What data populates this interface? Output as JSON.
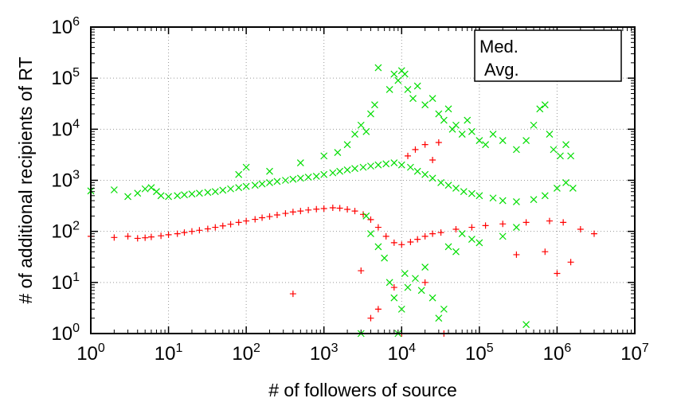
{
  "chart_data": {
    "type": "scatter",
    "xlabel": "# of followers of source",
    "ylabel": "# of additional recipients of RT",
    "x_scale": "log",
    "y_scale": "log",
    "xlim": [
      1,
      10000000
    ],
    "ylim": [
      1,
      1000000
    ],
    "x_ticks": [
      {
        "base": "10",
        "exp": "0"
      },
      {
        "base": "10",
        "exp": "1"
      },
      {
        "base": "10",
        "exp": "2"
      },
      {
        "base": "10",
        "exp": "3"
      },
      {
        "base": "10",
        "exp": "4"
      },
      {
        "base": "10",
        "exp": "5"
      },
      {
        "base": "10",
        "exp": "6"
      },
      {
        "base": "10",
        "exp": "7"
      }
    ],
    "y_ticks": [
      {
        "base": "10",
        "exp": "0"
      },
      {
        "base": "10",
        "exp": "1"
      },
      {
        "base": "10",
        "exp": "2"
      },
      {
        "base": "10",
        "exp": "3"
      },
      {
        "base": "10",
        "exp": "4"
      },
      {
        "base": "10",
        "exp": "5"
      },
      {
        "base": "10",
        "exp": "6"
      }
    ],
    "grid": true,
    "legend_position": "top-right",
    "series": [
      {
        "name": "Med.",
        "marker": "+",
        "color": "#ff0000",
        "points": [
          [
            1,
            80
          ],
          [
            2,
            76
          ],
          [
            3,
            80
          ],
          [
            4,
            73
          ],
          [
            5,
            75
          ],
          [
            6,
            78
          ],
          [
            8,
            82
          ],
          [
            10,
            86
          ],
          [
            13,
            90
          ],
          [
            16,
            95
          ],
          [
            20,
            100
          ],
          [
            25,
            105
          ],
          [
            32,
            112
          ],
          [
            40,
            120
          ],
          [
            50,
            128
          ],
          [
            63,
            138
          ],
          [
            80,
            150
          ],
          [
            100,
            160
          ],
          [
            130,
            172
          ],
          [
            160,
            185
          ],
          [
            200,
            195
          ],
          [
            250,
            210
          ],
          [
            320,
            225
          ],
          [
            400,
            240
          ],
          [
            500,
            250
          ],
          [
            630,
            262
          ],
          [
            800,
            272
          ],
          [
            1000,
            280
          ],
          [
            1300,
            290
          ],
          [
            1600,
            285
          ],
          [
            2000,
            270
          ],
          [
            2500,
            250
          ],
          [
            3200,
            215
          ],
          [
            4000,
            170
          ],
          [
            5000,
            120
          ],
          [
            6300,
            80
          ],
          [
            8000,
            60
          ],
          [
            10000,
            55
          ],
          [
            13000,
            62
          ],
          [
            16000,
            70
          ],
          [
            20000,
            80
          ],
          [
            25000,
            90
          ],
          [
            32000,
            95
          ],
          [
            50000,
            110
          ],
          [
            80000,
            120
          ],
          [
            120000,
            130
          ],
          [
            200000,
            140
          ],
          [
            400000,
            150
          ],
          [
            800000,
            160
          ],
          [
            1200000,
            150
          ],
          [
            2000000,
            110
          ],
          [
            3000000,
            90
          ],
          [
            400,
            6
          ],
          [
            4000,
            2
          ],
          [
            10000,
            1
          ],
          [
            5000,
            3
          ],
          [
            8000,
            8
          ],
          [
            20000,
            10
          ],
          [
            35000,
            1
          ],
          [
            1000000,
            15
          ],
          [
            1500000,
            25
          ],
          [
            700000,
            40
          ],
          [
            300000,
            35
          ],
          [
            3000,
            17
          ],
          [
            15000,
            4000
          ],
          [
            20000,
            5000
          ],
          [
            30000,
            5500
          ],
          [
            12000,
            3000
          ],
          [
            25000,
            2500
          ]
        ]
      },
      {
        "name": "Avg.",
        "marker": "x",
        "color": "#00dd00",
        "points": [
          [
            1,
            620
          ],
          [
            2,
            650
          ],
          [
            3,
            480
          ],
          [
            4,
            560
          ],
          [
            5,
            680
          ],
          [
            6,
            720
          ],
          [
            7,
            600
          ],
          [
            8,
            500
          ],
          [
            10,
            480
          ],
          [
            13,
            500
          ],
          [
            16,
            520
          ],
          [
            20,
            540
          ],
          [
            25,
            560
          ],
          [
            32,
            580
          ],
          [
            40,
            600
          ],
          [
            50,
            640
          ],
          [
            63,
            680
          ],
          [
            80,
            720
          ],
          [
            100,
            760
          ],
          [
            130,
            800
          ],
          [
            160,
            850
          ],
          [
            200,
            900
          ],
          [
            250,
            950
          ],
          [
            320,
            1000
          ],
          [
            400,
            1050
          ],
          [
            500,
            1100
          ],
          [
            630,
            1150
          ],
          [
            800,
            1200
          ],
          [
            1000,
            1300
          ],
          [
            1300,
            1400
          ],
          [
            1600,
            1500
          ],
          [
            2000,
            1600
          ],
          [
            2500,
            1700
          ],
          [
            3200,
            1800
          ],
          [
            4000,
            1900
          ],
          [
            5000,
            2000
          ],
          [
            6300,
            2100
          ],
          [
            8000,
            2200
          ],
          [
            10000,
            2000
          ],
          [
            13000,
            1800
          ],
          [
            16000,
            1500
          ],
          [
            20000,
            1300
          ],
          [
            25000,
            1100
          ],
          [
            32000,
            900
          ],
          [
            40000,
            800
          ],
          [
            50000,
            700
          ],
          [
            63000,
            600
          ],
          [
            80000,
            550
          ],
          [
            100000,
            500
          ],
          [
            150000,
            450
          ],
          [
            200000,
            400
          ],
          [
            300000,
            380
          ],
          [
            500000,
            420
          ],
          [
            700000,
            500
          ],
          [
            1000000,
            700
          ],
          [
            1300000,
            900
          ],
          [
            1600000,
            700
          ],
          [
            200,
            1500
          ],
          [
            80,
            1300
          ],
          [
            100,
            1800
          ],
          [
            500,
            2200
          ],
          [
            1000,
            3000
          ],
          [
            1500,
            3500
          ],
          [
            2000,
            5000
          ],
          [
            2500,
            8000
          ],
          [
            3000,
            12000
          ],
          [
            3500,
            9000
          ],
          [
            4000,
            20000
          ],
          [
            4500,
            30000
          ],
          [
            5000,
            160000
          ],
          [
            7000,
            60000
          ],
          [
            8000,
            120000
          ],
          [
            9000,
            90000
          ],
          [
            10000,
            140000
          ],
          [
            11000,
            120000
          ],
          [
            12000,
            60000
          ],
          [
            14000,
            40000
          ],
          [
            16000,
            70000
          ],
          [
            20000,
            30000
          ],
          [
            25000,
            40000
          ],
          [
            30000,
            20000
          ],
          [
            35000,
            15000
          ],
          [
            40000,
            25000
          ],
          [
            45000,
            10000
          ],
          [
            50000,
            12000
          ],
          [
            60000,
            8000
          ],
          [
            70000,
            15000
          ],
          [
            80000,
            9000
          ],
          [
            100000,
            6000
          ],
          [
            120000,
            5000
          ],
          [
            150000,
            8000
          ],
          [
            200000,
            6000
          ],
          [
            300000,
            4000
          ],
          [
            400000,
            6000
          ],
          [
            500000,
            12000
          ],
          [
            600000,
            25000
          ],
          [
            700000,
            30000
          ],
          [
            800000,
            8000
          ],
          [
            900000,
            4000
          ],
          [
            1100000,
            3000
          ],
          [
            1300000,
            5000
          ],
          [
            1500000,
            3000
          ],
          [
            3000,
            1
          ],
          [
            3500,
            200
          ],
          [
            4000,
            90
          ],
          [
            5000,
            50
          ],
          [
            6000,
            30
          ],
          [
            7000,
            10
          ],
          [
            8000,
            5
          ],
          [
            10000,
            3
          ],
          [
            12000,
            8
          ],
          [
            15000,
            12
          ],
          [
            20000,
            20
          ],
          [
            25000,
            5
          ],
          [
            30000,
            2
          ],
          [
            35000,
            3
          ],
          [
            40000,
            50
          ],
          [
            50000,
            40
          ],
          [
            60000,
            90
          ],
          [
            80000,
            70
          ],
          [
            100000,
            60
          ],
          [
            200000,
            80
          ],
          [
            300000,
            120
          ],
          [
            400000,
            1.5
          ],
          [
            9000,
            1
          ],
          [
            11000,
            15
          ],
          [
            18000,
            7
          ]
        ]
      }
    ]
  }
}
